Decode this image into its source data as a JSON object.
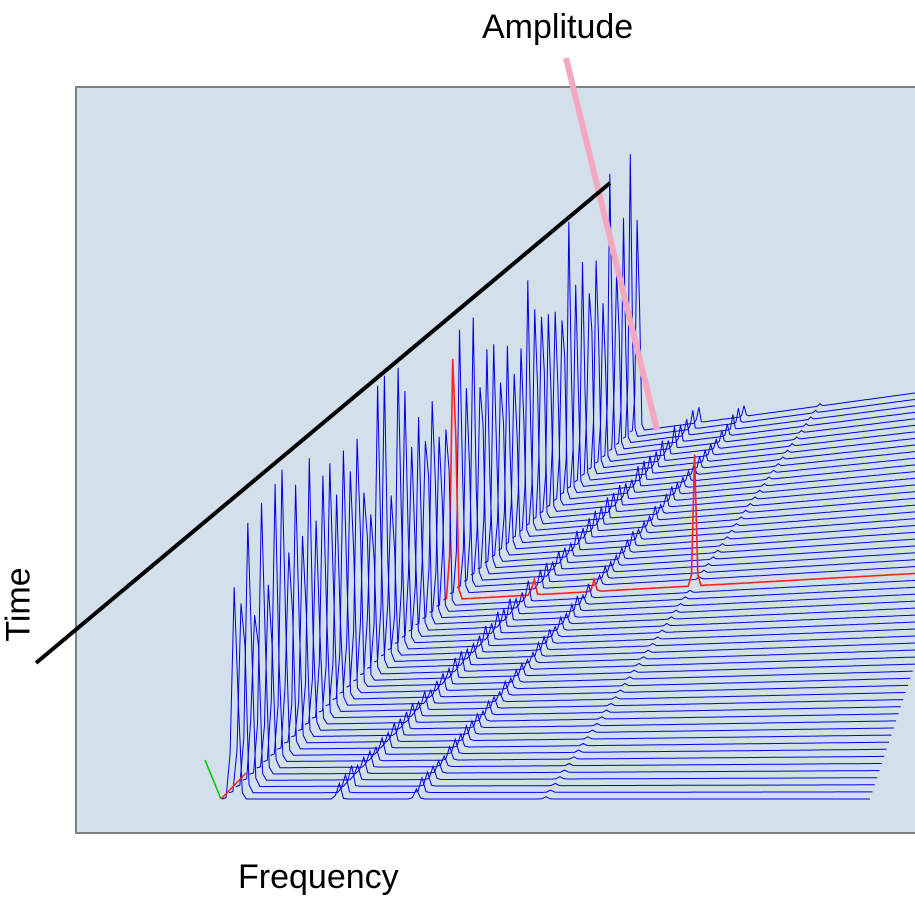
{
  "chart_data": {
    "type": "waterfall-3d",
    "axis_titles": {
      "amplitude": "Amplitude",
      "frequency": "Frequency",
      "time": "Time"
    },
    "colors": {
      "background": "#d3dfea",
      "trace": "#0000e0",
      "highlight_trace": "#ff2020",
      "amplitude_axis": "#f4a8c0",
      "time_axis": "#000000",
      "border": "#808080"
    },
    "trace_count": 60,
    "highlight_trace_index": 32,
    "spectrum_peaks": [
      {
        "frequency": 0.02,
        "amplitude": 1.0
      },
      {
        "frequency": 0.18,
        "amplitude": 0.08
      },
      {
        "frequency": 0.3,
        "amplitude": 0.05
      },
      {
        "frequency": 0.5,
        "amplitude": 0.38
      }
    ]
  }
}
